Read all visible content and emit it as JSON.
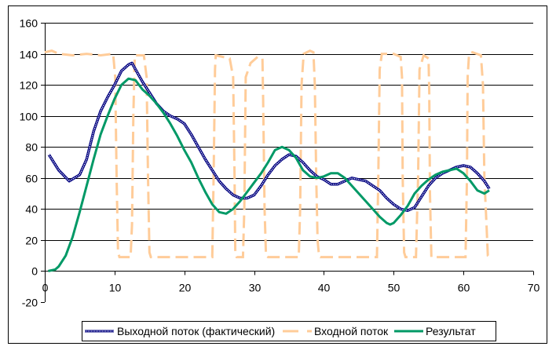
{
  "chart_data": {
    "type": "line",
    "title": "",
    "xlabel": "",
    "ylabel": "",
    "xlim": [
      0,
      70
    ],
    "ylim": [
      -20,
      160
    ],
    "x_ticks": [
      0,
      10,
      20,
      30,
      40,
      50,
      60,
      70
    ],
    "y_ticks": [
      -20,
      0,
      20,
      40,
      60,
      80,
      100,
      120,
      140,
      160
    ],
    "grid": "horizontal",
    "legend": "bottom",
    "series": [
      {
        "name": "Выходной поток (фактический)",
        "color": "#000080",
        "style": "marker-line",
        "points": [
          [
            0.6,
            75
          ],
          [
            2,
            65
          ],
          [
            3.5,
            58
          ],
          [
            5,
            62
          ],
          [
            6,
            72
          ],
          [
            7,
            90
          ],
          [
            8,
            103
          ],
          [
            9,
            112
          ],
          [
            10,
            120
          ],
          [
            11,
            129
          ],
          [
            12,
            133
          ],
          [
            12.5,
            134
          ],
          [
            13,
            130
          ],
          [
            14,
            122
          ],
          [
            15,
            115
          ],
          [
            16,
            108
          ],
          [
            17,
            103
          ],
          [
            18,
            100
          ],
          [
            19,
            98
          ],
          [
            20,
            95
          ],
          [
            21,
            88
          ],
          [
            22,
            80
          ],
          [
            23,
            72
          ],
          [
            24,
            65
          ],
          [
            25,
            58
          ],
          [
            26,
            53
          ],
          [
            27,
            49
          ],
          [
            28,
            47
          ],
          [
            29,
            47
          ],
          [
            30,
            49
          ],
          [
            31,
            55
          ],
          [
            32,
            62
          ],
          [
            33,
            68
          ],
          [
            34,
            72
          ],
          [
            35,
            75
          ],
          [
            36,
            74
          ],
          [
            37,
            70
          ],
          [
            38,
            65
          ],
          [
            39,
            61
          ],
          [
            40,
            59
          ],
          [
            41,
            56
          ],
          [
            42,
            56
          ],
          [
            43,
            58
          ],
          [
            44,
            60
          ],
          [
            45,
            59
          ],
          [
            46,
            58
          ],
          [
            47,
            55
          ],
          [
            48,
            52
          ],
          [
            49,
            47
          ],
          [
            50,
            43
          ],
          [
            51,
            40
          ],
          [
            52,
            39
          ],
          [
            53,
            41
          ],
          [
            54,
            48
          ],
          [
            55,
            55
          ],
          [
            56,
            60
          ],
          [
            57,
            63
          ],
          [
            58,
            65
          ],
          [
            59,
            67
          ],
          [
            60,
            68
          ],
          [
            61,
            67
          ],
          [
            62,
            63
          ],
          [
            63,
            58
          ],
          [
            63.7,
            53
          ]
        ]
      },
      {
        "name": "Входной поток",
        "color": "#FFCC99",
        "style": "dashed",
        "points": [
          [
            0,
            141
          ],
          [
            1,
            142
          ],
          [
            2,
            140
          ],
          [
            4,
            139
          ],
          [
            6,
            140
          ],
          [
            8,
            139
          ],
          [
            9.8,
            140
          ],
          [
            10.1,
            125
          ],
          [
            10.3,
            60
          ],
          [
            10.5,
            12
          ],
          [
            10.7,
            9
          ],
          [
            12.3,
            9
          ],
          [
            12.5,
            30
          ],
          [
            12.7,
            100
          ],
          [
            12.9,
            139
          ],
          [
            14.2,
            139
          ],
          [
            14.6,
            125
          ],
          [
            14.8,
            60
          ],
          [
            15,
            12
          ],
          [
            15.2,
            9
          ],
          [
            24,
            9
          ],
          [
            24.2,
            60
          ],
          [
            24.4,
            130
          ],
          [
            24.5,
            139
          ],
          [
            25.5,
            138
          ],
          [
            26.5,
            137
          ],
          [
            27,
            125
          ],
          [
            27.2,
            60
          ],
          [
            27.3,
            12
          ],
          [
            27.5,
            9
          ],
          [
            28.4,
            9
          ],
          [
            28.6,
            40
          ],
          [
            28.8,
            125
          ],
          [
            29.5,
            134
          ],
          [
            30.5,
            138
          ],
          [
            31.2,
            137
          ],
          [
            31.3,
            110
          ],
          [
            31.5,
            40
          ],
          [
            31.7,
            10
          ],
          [
            32,
            9
          ],
          [
            36.4,
            9
          ],
          [
            36.6,
            40
          ],
          [
            36.8,
            120
          ],
          [
            37.1,
            140
          ],
          [
            38,
            142
          ],
          [
            38.5,
            141
          ],
          [
            38.7,
            120
          ],
          [
            38.9,
            60
          ],
          [
            39.1,
            20
          ],
          [
            39.3,
            10
          ],
          [
            39.5,
            9
          ],
          [
            47.6,
            9
          ],
          [
            47.8,
            60
          ],
          [
            48,
            130
          ],
          [
            48.3,
            140
          ],
          [
            50,
            140
          ],
          [
            51,
            138
          ],
          [
            51.2,
            125
          ],
          [
            51.3,
            60
          ],
          [
            51.5,
            12
          ],
          [
            51.7,
            9
          ],
          [
            53.2,
            9
          ],
          [
            53.5,
            60
          ],
          [
            53.7,
            130
          ],
          [
            54.3,
            139
          ],
          [
            55,
            137
          ],
          [
            55.1,
            115
          ],
          [
            55.2,
            50
          ],
          [
            55.4,
            9
          ],
          [
            60.3,
            9
          ],
          [
            60.5,
            60
          ],
          [
            60.6,
            125
          ],
          [
            60.8,
            140
          ],
          [
            61.3,
            141
          ],
          [
            62.5,
            139
          ],
          [
            62.8,
            120
          ],
          [
            63,
            60
          ],
          [
            63.3,
            30
          ],
          [
            63.5,
            10
          ],
          [
            63.8,
            9
          ]
        ]
      },
      {
        "name": "Результат",
        "color": "#009966",
        "style": "solid",
        "points": [
          [
            0.5,
            0
          ],
          [
            1.5,
            1
          ],
          [
            2,
            3
          ],
          [
            3,
            10
          ],
          [
            4,
            22
          ],
          [
            5,
            38
          ],
          [
            6,
            55
          ],
          [
            7,
            72
          ],
          [
            8,
            88
          ],
          [
            9,
            100
          ],
          [
            10,
            111
          ],
          [
            11,
            120
          ],
          [
            12,
            124
          ],
          [
            13,
            123
          ],
          [
            14,
            117
          ],
          [
            15,
            113
          ],
          [
            16,
            108
          ],
          [
            17,
            102
          ],
          [
            18,
            95
          ],
          [
            19,
            87
          ],
          [
            20,
            78
          ],
          [
            21,
            70
          ],
          [
            22,
            60
          ],
          [
            23,
            51
          ],
          [
            24,
            43
          ],
          [
            25,
            38
          ],
          [
            26,
            37
          ],
          [
            27,
            40
          ],
          [
            28,
            45
          ],
          [
            29,
            51
          ],
          [
            30,
            57
          ],
          [
            31,
            63
          ],
          [
            32,
            70
          ],
          [
            33,
            78
          ],
          [
            34,
            80
          ],
          [
            35,
            78
          ],
          [
            36,
            73
          ],
          [
            37,
            65
          ],
          [
            38,
            61
          ],
          [
            39,
            60
          ],
          [
            40,
            61
          ],
          [
            41,
            63
          ],
          [
            42,
            63
          ],
          [
            43,
            60
          ],
          [
            44,
            55
          ],
          [
            45,
            50
          ],
          [
            46,
            45
          ],
          [
            47,
            40
          ],
          [
            48,
            35
          ],
          [
            49,
            31
          ],
          [
            49.5,
            30
          ],
          [
            50,
            31
          ],
          [
            51,
            36
          ],
          [
            52,
            42
          ],
          [
            53,
            50
          ],
          [
            54,
            55
          ],
          [
            55,
            59
          ],
          [
            56,
            62
          ],
          [
            57,
            64
          ],
          [
            58,
            65
          ],
          [
            59,
            66
          ],
          [
            60,
            63
          ],
          [
            61,
            58
          ],
          [
            62,
            52
          ],
          [
            63,
            50
          ],
          [
            63.7,
            52
          ]
        ]
      }
    ]
  }
}
